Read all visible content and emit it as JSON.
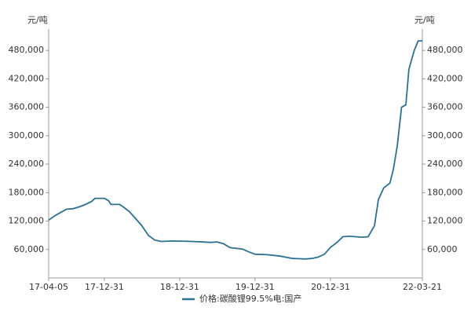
{
  "chart_data": {
    "type": "line",
    "y_unit": "元/吨",
    "y2_unit": "元/吨",
    "x": [
      "17-04-05",
      "17-05-01",
      "17-06-01",
      "17-07-01",
      "17-08-01",
      "17-09-01",
      "17-10-01",
      "17-11-01",
      "17-11-15",
      "17-12-31",
      "18-01-20",
      "18-02-01",
      "18-03-15",
      "18-04-01",
      "18-05-01",
      "18-06-01",
      "18-07-01",
      "18-08-01",
      "18-09-01",
      "18-10-01",
      "18-12-01",
      "19-03-01",
      "19-06-01",
      "19-07-01",
      "19-08-01",
      "19-09-01",
      "19-11-01",
      "19-12-01",
      "20-01-01",
      "20-03-01",
      "20-05-01",
      "20-07-01",
      "20-09-01",
      "20-10-01",
      "20-11-01",
      "20-12-01",
      "21-01-01",
      "21-02-01",
      "21-03-01",
      "21-04-01",
      "21-06-01",
      "21-07-01",
      "21-08-01",
      "21-08-20",
      "21-09-15",
      "21-10-15",
      "21-11-01",
      "21-11-20",
      "21-12-10",
      "21-12-31",
      "22-01-15",
      "22-02-10",
      "22-03-01",
      "22-03-21"
    ],
    "series": [
      {
        "name": "价格:碳酸锂99.5%电:国产",
        "color": "#2a7196",
        "values": [
          122000,
          130000,
          138000,
          145000,
          146000,
          150000,
          155000,
          162000,
          168000,
          168000,
          163000,
          155000,
          155000,
          150000,
          140000,
          125000,
          110000,
          90000,
          80000,
          77000,
          78000,
          77000,
          75000,
          76000,
          72000,
          64000,
          61000,
          55000,
          50000,
          49000,
          46000,
          41000,
          40000,
          41000,
          44000,
          50000,
          65000,
          75000,
          87000,
          88000,
          86000,
          87000,
          110000,
          165000,
          190000,
          200000,
          230000,
          280000,
          360000,
          365000,
          440000,
          480000,
          500000,
          500000
        ]
      }
    ],
    "xlim": [
      "17-04-05",
      "22-03-21"
    ],
    "xticks": [
      "17-04-05",
      "17-12-31",
      "18-12-31",
      "19-12-31",
      "20-12-31",
      "22-03-21"
    ],
    "ylim": [
      0,
      525000
    ],
    "yticks": [
      {
        "value": 60000,
        "label": "60,000"
      },
      {
        "value": 120000,
        "label": "120,000"
      },
      {
        "value": 180000,
        "label": "180,000"
      },
      {
        "value": 240000,
        "label": "240,000"
      },
      {
        "value": 300000,
        "label": "300,000"
      },
      {
        "value": 360000,
        "label": "360,000"
      },
      {
        "value": 420000,
        "label": "420,000"
      },
      {
        "value": 480000,
        "label": "480,000"
      }
    ],
    "y2lim": [
      0,
      525000
    ],
    "y2ticks": [
      {
        "value": 60000,
        "label": "60,000"
      },
      {
        "value": 120000,
        "label": "120,000"
      },
      {
        "value": 180000,
        "label": "180,000"
      },
      {
        "value": 240000,
        "label": "240,000"
      },
      {
        "value": 300000,
        "label": "300,000"
      },
      {
        "value": 360000,
        "label": "360,000"
      },
      {
        "value": 420000,
        "label": "420,000"
      },
      {
        "value": 480000,
        "label": "480,000"
      }
    ]
  }
}
